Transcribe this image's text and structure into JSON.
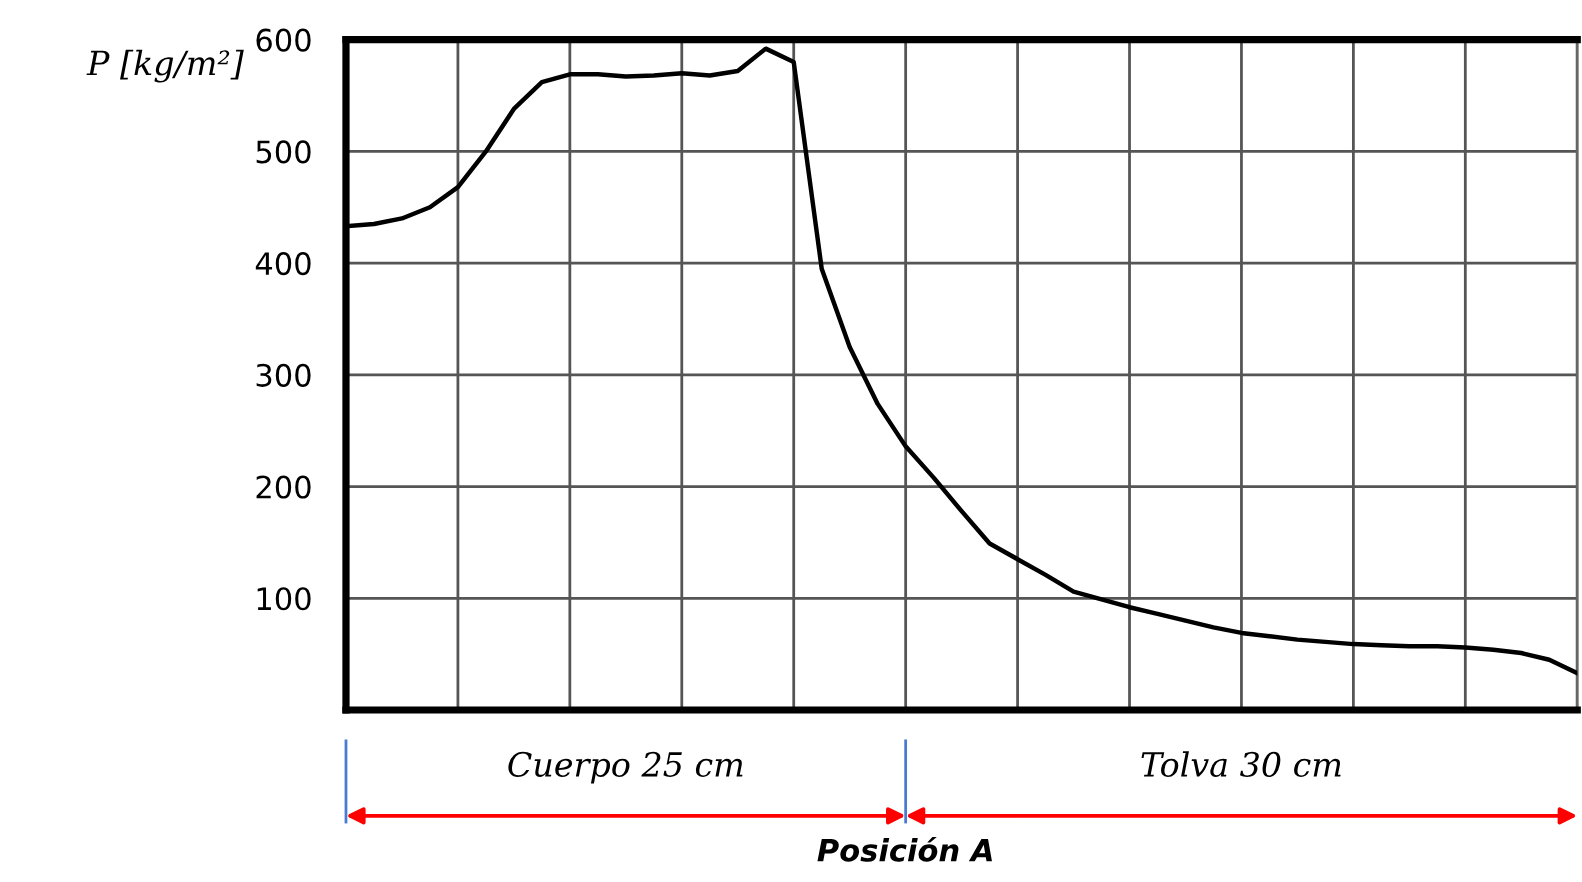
{
  "chart_data": {
    "type": "line",
    "ylabel": "P [kg/m²]",
    "categories": [
      null,
      null,
      null,
      null,
      null,
      null,
      null,
      null,
      null,
      null,
      null,
      null,
      null,
      null,
      null,
      null,
      null,
      null,
      null,
      null,
      null,
      null,
      null,
      null,
      null,
      null,
      null,
      null,
      null,
      null,
      null,
      null,
      null,
      null,
      null,
      null,
      null,
      null,
      null,
      null,
      null,
      null,
      null,
      null,
      null
    ],
    "series": [
      {
        "color": "#000000",
        "values": [
          433,
          435,
          440,
          450,
          468,
          500,
          538,
          562,
          569,
          569,
          567,
          568,
          570,
          568,
          572,
          592,
          580,
          395,
          325,
          274,
          236,
          208,
          178,
          149,
          135,
          121,
          106,
          99,
          92,
          86,
          80,
          74,
          69,
          66,
          63,
          61,
          59,
          58,
          57,
          57,
          56,
          54,
          51,
          45,
          33
        ]
      }
    ],
    "ylim": [
      0,
      600
    ],
    "yticks": [
      100,
      200,
      300,
      400,
      500,
      600
    ],
    "tick_labels": "y",
    "grid": true,
    "legend": false,
    "marker": "none",
    "line_style": "solid",
    "annotations": [
      "Cuerpo 25 cm",
      "Tolva 30 cm",
      "Posición A"
    ]
  }
}
